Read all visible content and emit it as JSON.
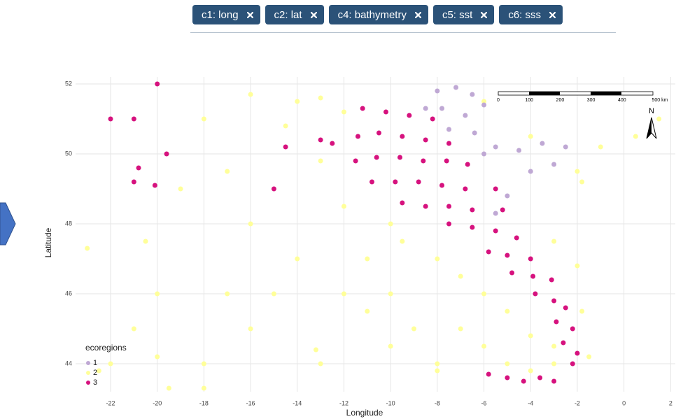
{
  "filter_tags": [
    "c1: long",
    "c2: lat",
    "c4: bathymetry",
    "c5: sst",
    "c6: sss"
  ],
  "chart_data": {
    "type": "scatter",
    "x_label": "Longitude",
    "y_label": "Latitude",
    "legend_title": "ecoregions",
    "legend_position": "bottom-left",
    "grid": true,
    "xlim": [
      -23.5,
      2.2
    ],
    "ylim": [
      43.2,
      52.2
    ],
    "xticks": [
      -22,
      -20,
      -18,
      -16,
      -14,
      -12,
      -10,
      -8,
      -6,
      -4,
      -2,
      0,
      2
    ],
    "yticks": [
      44,
      46,
      48,
      50,
      52
    ],
    "series": [
      {
        "name": "1",
        "color": "#bfa8d4",
        "x": [
          -8,
          -7.2,
          -6.5,
          -7.8,
          -6.8,
          -6,
          -7.5,
          -6.4,
          -5.5,
          -4.5,
          -3.5,
          -2.5,
          -3,
          -4,
          -5,
          -5.5,
          -8.5,
          -6
        ],
        "values": [
          51.8,
          51.9,
          51.7,
          51.3,
          51.1,
          51.4,
          50.7,
          50.6,
          50.2,
          50.1,
          50.3,
          50.2,
          49.7,
          49.5,
          48.8,
          48.3,
          51.3,
          50
        ]
      },
      {
        "name": "2",
        "color": "#ffff99",
        "x": [
          -16,
          -14,
          -13,
          -12,
          -14.5,
          -13,
          -12,
          -10,
          -9.5,
          -8,
          -7,
          -6,
          -5,
          -4,
          -3,
          -1.5,
          -1.8,
          -2,
          -3,
          -7,
          -6,
          -8,
          -9,
          -10,
          -11,
          -12,
          -13,
          -13.2,
          -16,
          -17,
          -18,
          -20,
          -21,
          -22,
          -22.5,
          -23,
          -20.5,
          -19,
          -17,
          -18,
          -16,
          -14,
          -15,
          -5,
          -4,
          -3,
          -1,
          0.5,
          1.5,
          -2,
          -4,
          -6,
          -1.8,
          -8,
          -10,
          -11,
          -19.5,
          -18,
          -20
        ],
        "values": [
          51.7,
          51.5,
          51.6,
          51.2,
          50.8,
          49.8,
          48.5,
          48,
          47.5,
          47,
          46.5,
          46,
          45.5,
          44.8,
          44.5,
          44.2,
          45.5,
          46.8,
          47.5,
          45,
          44.5,
          44,
          45,
          46,
          47,
          46,
          44,
          44.4,
          45,
          46,
          44,
          46,
          45,
          44,
          43.8,
          47.3,
          47.5,
          49,
          49.5,
          51,
          48,
          47,
          46,
          44,
          43.8,
          44,
          50.2,
          50.5,
          51,
          49.5,
          50.5,
          51.5,
          49.2,
          43.8,
          44.5,
          45.5,
          43.3,
          43.3,
          44.2
        ]
      },
      {
        "name": "3",
        "color": "#d6127e",
        "x": [
          -11.2,
          -10.2,
          -9.2,
          -8.2,
          -11.4,
          -10.5,
          -9.5,
          -8.5,
          -7.5,
          -11.5,
          -10.6,
          -9.6,
          -8.6,
          -7.6,
          -6.7,
          -10.8,
          -9.8,
          -8.8,
          -7.8,
          -6.8,
          -5.5,
          -9.5,
          -8.5,
          -7.5,
          -6.5,
          -5.2,
          -7.5,
          -6.5,
          -5.5,
          -4.6,
          -5.8,
          -5,
          -4,
          -4.8,
          -3.9,
          -3.1,
          -3.8,
          -3,
          -2.5,
          -2.9,
          -2.2,
          -2.6,
          -2,
          -2.2,
          -5.8,
          -5,
          -4.3,
          -3.6,
          -3,
          -22,
          -21,
          -20,
          -20.8,
          -21,
          -20.1,
          -19.6,
          -15,
          -14.5,
          -13,
          -12.5
        ],
        "values": [
          51.3,
          51.2,
          51.1,
          51,
          50.5,
          50.6,
          50.5,
          50.4,
          50.3,
          49.8,
          49.9,
          49.9,
          49.8,
          49.8,
          49.7,
          49.2,
          49.2,
          49.2,
          49.1,
          49,
          49,
          48.6,
          48.5,
          48.5,
          48.4,
          48.4,
          48,
          47.9,
          47.8,
          47.6,
          47.2,
          47.1,
          47,
          46.6,
          46.5,
          46.4,
          46,
          45.8,
          45.6,
          45.2,
          45,
          44.6,
          44.3,
          44,
          43.7,
          43.6,
          43.5,
          43.6,
          43.5,
          51,
          51,
          52,
          49.6,
          49.2,
          49.1,
          50,
          49,
          50.2,
          50.4,
          50.3
        ]
      }
    ]
  },
  "scale_bar": {
    "labels": [
      "0",
      "100",
      "200",
      "300",
      "400",
      "500 km"
    ]
  },
  "north_label": "N"
}
